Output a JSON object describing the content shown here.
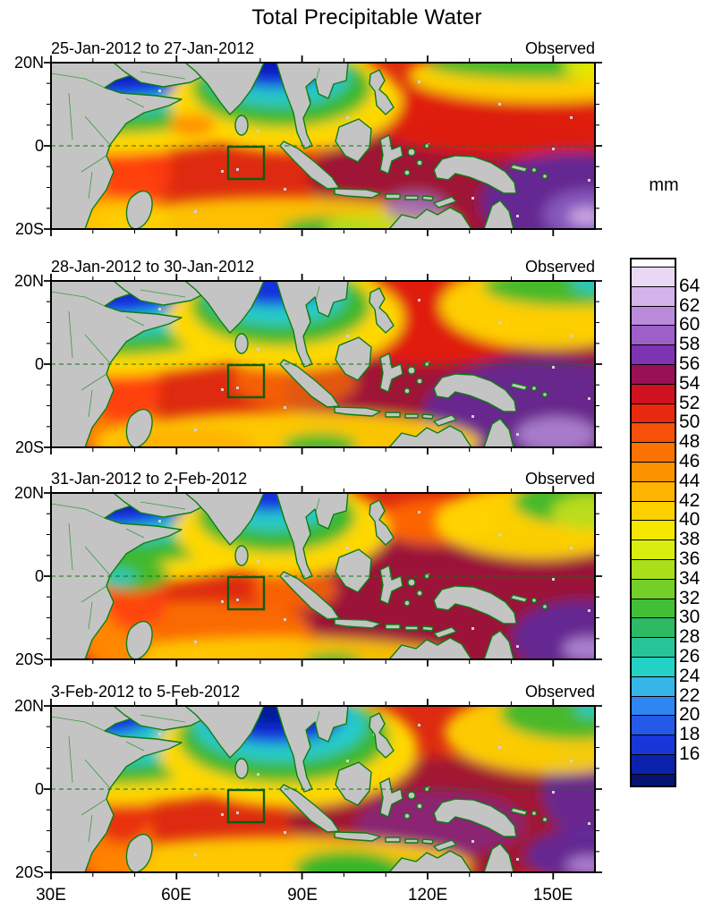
{
  "figure": {
    "title": "Total Precipitable Water"
  },
  "panels": [
    {
      "date_range": "25-Jan-2012 to 27-Jan-2012",
      "source_label": "Observed"
    },
    {
      "date_range": "28-Jan-2012 to 30-Jan-2012",
      "source_label": "Observed"
    },
    {
      "date_range": "31-Jan-2012 to 2-Feb-2012",
      "source_label": "Observed"
    },
    {
      "date_range": "3-Feb-2012 to 5-Feb-2012",
      "source_label": "Observed"
    }
  ],
  "axes": {
    "lat_tick_labels": [
      "20N",
      "0",
      "20S"
    ],
    "lon_tick_labels": [
      "30E",
      "60E",
      "90E",
      "120E",
      "150E"
    ],
    "lon_range": "30E to 160E",
    "lat_range": "20N to 20S"
  },
  "colorbar": {
    "unit": "mm",
    "tick_values": [
      64,
      62,
      60,
      58,
      56,
      54,
      52,
      50,
      48,
      46,
      44,
      42,
      40,
      38,
      36,
      34,
      32,
      30,
      28,
      26,
      24,
      22,
      20,
      18,
      16
    ],
    "cells": [
      {
        "range": ">66",
        "color": "#ffffff"
      },
      {
        "range": "64-66",
        "color": "#e9d9f4"
      },
      {
        "range": "62-64",
        "color": "#d3b3e9"
      },
      {
        "range": "60-62",
        "color": "#ba8bda"
      },
      {
        "range": "58-60",
        "color": "#9d60c9"
      },
      {
        "range": "56-58",
        "color": "#7e33b3"
      },
      {
        "range": "54-56",
        "color": "#991056"
      },
      {
        "range": "52-54",
        "color": "#cf1220"
      },
      {
        "range": "50-52",
        "color": "#e8290f"
      },
      {
        "range": "48-50",
        "color": "#f65009"
      },
      {
        "range": "46-48",
        "color": "#fb7202"
      },
      {
        "range": "44-46",
        "color": "#fd9200"
      },
      {
        "range": "42-44",
        "color": "#feb400"
      },
      {
        "range": "40-42",
        "color": "#fed000"
      },
      {
        "range": "38-40",
        "color": "#f7e600"
      },
      {
        "range": "36-38",
        "color": "#d9ee0e"
      },
      {
        "range": "34-36",
        "color": "#a9e01b"
      },
      {
        "range": "32-34",
        "color": "#74d028"
      },
      {
        "range": "30-32",
        "color": "#41bf37"
      },
      {
        "range": "28-30",
        "color": "#2eb965"
      },
      {
        "range": "26-28",
        "color": "#26c497"
      },
      {
        "range": "24-26",
        "color": "#23d2c4"
      },
      {
        "range": "22-24",
        "color": "#35b5e8"
      },
      {
        "range": "20-22",
        "color": "#2f86f2"
      },
      {
        "range": "18-20",
        "color": "#2459ea"
      },
      {
        "range": "16-18",
        "color": "#1737d9"
      },
      {
        "range": "14-16",
        "color": "#0c21ab"
      },
      {
        "range": "<14",
        "color": "#051373"
      }
    ]
  },
  "annotations": {
    "study_box_extent": "approx 73E-82E, 0-8S, dark green outline",
    "equator_line_style": "dashed green at latitude 0"
  }
}
